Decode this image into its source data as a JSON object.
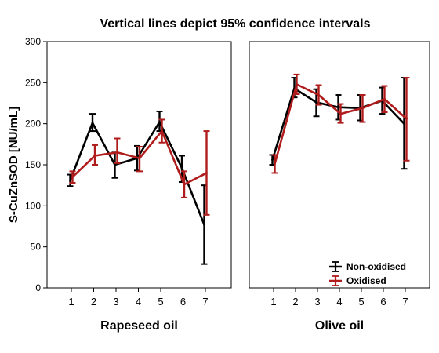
{
  "chart_data": {
    "type": "line",
    "title": "Vertical lines depict 95% confidence intervals",
    "ylabel": "S-CuZnSOD [NU/mL]",
    "ylim": [
      0,
      300
    ],
    "yticks": [
      0,
      50,
      100,
      150,
      200,
      250,
      300
    ],
    "categories": [
      "1",
      "2",
      "3",
      "4",
      "5",
      "6",
      "7"
    ],
    "grid": false,
    "legend_position": "bottom-right of right panel",
    "legend": [
      "Non-oxidised",
      "Oxidised"
    ],
    "colors": {
      "Non-oxidised": "#000000",
      "Oxidised": "#b01c1c"
    },
    "panels": [
      {
        "xlabel": "Rapeseed oil",
        "series": [
          {
            "name": "Non-oxidised",
            "values": [
              131,
              201,
              150,
              158,
              202,
              146,
              77
            ],
            "lower": [
              124,
              191,
              134,
              143,
              191,
              129,
              29
            ],
            "upper": [
              138,
              212,
              165,
              173,
              215,
              161,
              125
            ]
          },
          {
            "name": "Oxidised",
            "values": [
              135,
              161,
              165,
              158,
              191,
              126,
              140
            ],
            "lower": [
              128,
              150,
              152,
              142,
              177,
              110,
              89
            ],
            "upper": [
              142,
              174,
              182,
              172,
              205,
              142,
              191
            ]
          }
        ]
      },
      {
        "xlabel": "Olive oil",
        "series": [
          {
            "name": "Non-oxidised",
            "values": [
              156,
              243,
              226,
              220,
              219,
              228,
              200
            ],
            "lower": [
              150,
              232,
              209,
              205,
              204,
              212,
              145
            ],
            "upper": [
              162,
              256,
              242,
              235,
              235,
              244,
              256
            ]
          },
          {
            "name": "Oxidised",
            "values": [
              151,
              248,
              235,
              212,
              219,
              230,
              206
            ],
            "lower": [
              140,
              236,
              223,
              201,
              202,
              214,
              155
            ],
            "upper": [
              162,
              260,
              247,
              224,
              235,
              246,
              256
            ]
          }
        ]
      }
    ]
  }
}
